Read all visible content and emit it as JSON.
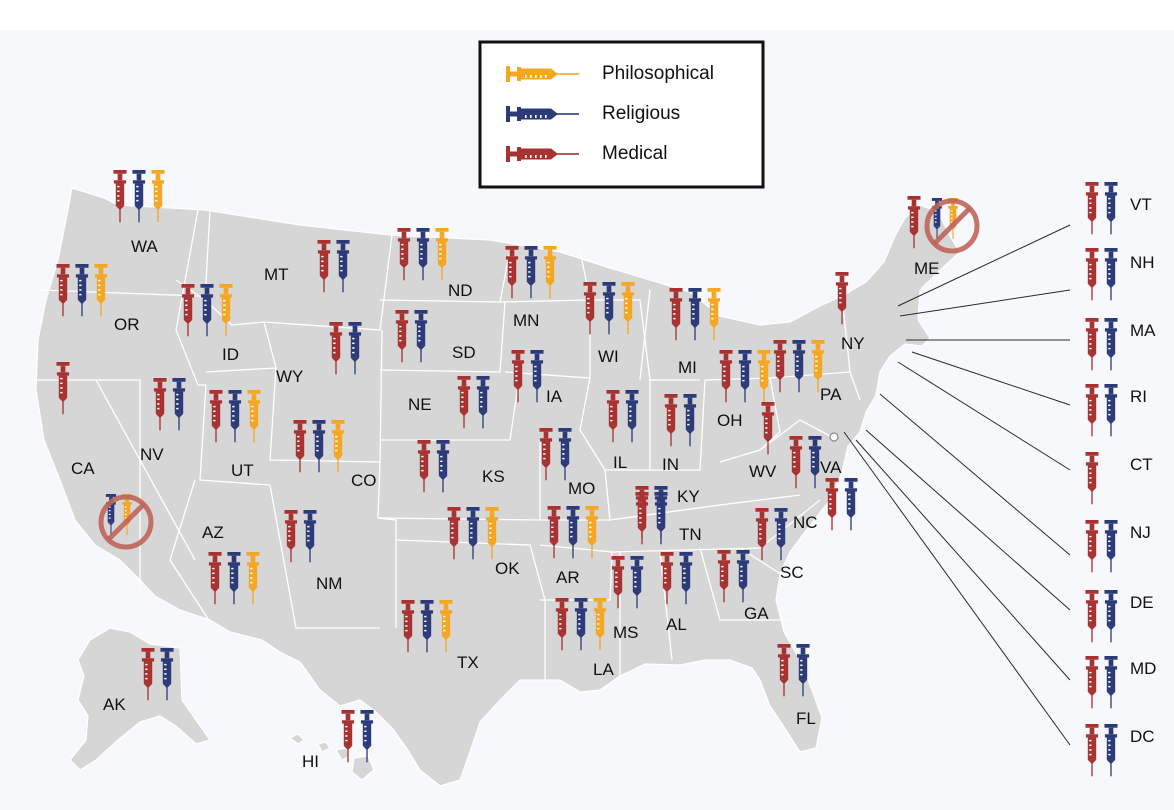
{
  "colors": {
    "philosophical": "#f5a623",
    "religious": "#2c3a78",
    "medical": "#a83232",
    "land": "#d6d6d6",
    "border": "#ffffff",
    "ban": "#c0645a",
    "background_band": "#f7f8fb"
  },
  "legend": {
    "philosophical": "Philosophical",
    "religious": "Religious",
    "medical": "Medical"
  },
  "states": [
    {
      "code": "WA",
      "label": "WA",
      "exemptions": [
        "medical",
        "religious",
        "philosophical"
      ],
      "banned": false
    },
    {
      "code": "OR",
      "label": "OR",
      "exemptions": [
        "medical",
        "religious",
        "philosophical"
      ],
      "banned": false
    },
    {
      "code": "CA",
      "label": "CA",
      "exemptions": [
        "medical"
      ],
      "banned": false,
      "banned_icon": [
        "religious",
        "philosophical"
      ]
    },
    {
      "code": "NV",
      "label": "NV",
      "exemptions": [
        "medical",
        "religious"
      ],
      "banned": false
    },
    {
      "code": "ID",
      "label": "ID",
      "exemptions": [
        "medical",
        "religious",
        "philosophical"
      ],
      "banned": false
    },
    {
      "code": "MT",
      "label": "MT",
      "exemptions": [
        "medical",
        "religious"
      ],
      "banned": false
    },
    {
      "code": "WY",
      "label": "WY",
      "exemptions": [
        "medical",
        "religious"
      ],
      "banned": false
    },
    {
      "code": "UT",
      "label": "UT",
      "exemptions": [
        "medical",
        "religious",
        "philosophical"
      ],
      "banned": false
    },
    {
      "code": "AZ",
      "label": "AZ",
      "exemptions": [
        "medical",
        "religious",
        "philosophical"
      ],
      "banned": false
    },
    {
      "code": "CO",
      "label": "CO",
      "exemptions": [
        "medical",
        "religious",
        "philosophical"
      ],
      "banned": false
    },
    {
      "code": "NM",
      "label": "NM",
      "exemptions": [
        "medical",
        "religious"
      ],
      "banned": false
    },
    {
      "code": "ND",
      "label": "ND",
      "exemptions": [
        "medical",
        "religious",
        "philosophical"
      ],
      "banned": false
    },
    {
      "code": "SD",
      "label": "SD",
      "exemptions": [
        "medical",
        "religious"
      ],
      "banned": false
    },
    {
      "code": "NE",
      "label": "NE",
      "exemptions": [
        "medical",
        "religious"
      ],
      "banned": false
    },
    {
      "code": "KS",
      "label": "KS",
      "exemptions": [
        "medical",
        "religious"
      ],
      "banned": false
    },
    {
      "code": "OK",
      "label": "OK",
      "exemptions": [
        "medical",
        "religious",
        "philosophical"
      ],
      "banned": false
    },
    {
      "code": "TX",
      "label": "TX",
      "exemptions": [
        "medical",
        "religious",
        "philosophical"
      ],
      "banned": false
    },
    {
      "code": "MN",
      "label": "MN",
      "exemptions": [
        "medical",
        "religious",
        "philosophical"
      ],
      "banned": false
    },
    {
      "code": "IA",
      "label": "IA",
      "exemptions": [
        "medical",
        "religious"
      ],
      "banned": false
    },
    {
      "code": "MO",
      "label": "MO",
      "exemptions": [
        "medical",
        "religious"
      ],
      "banned": false
    },
    {
      "code": "AR",
      "label": "AR",
      "exemptions": [
        "medical",
        "religious",
        "philosophical"
      ],
      "banned": false
    },
    {
      "code": "LA",
      "label": "LA",
      "exemptions": [
        "medical",
        "religious",
        "philosophical"
      ],
      "banned": false
    },
    {
      "code": "WI",
      "label": "WI",
      "exemptions": [
        "medical",
        "religious",
        "philosophical"
      ],
      "banned": false
    },
    {
      "code": "IL",
      "label": "IL",
      "exemptions": [
        "medical",
        "religious"
      ],
      "banned": false
    },
    {
      "code": "MI",
      "label": "MI",
      "exemptions": [
        "medical",
        "religious",
        "philosophical"
      ],
      "banned": false
    },
    {
      "code": "IN",
      "label": "IN",
      "exemptions": [
        "medical",
        "religious"
      ],
      "banned": false
    },
    {
      "code": "OH",
      "label": "OH",
      "exemptions": [
        "medical",
        "religious",
        "philosophical"
      ],
      "banned": false
    },
    {
      "code": "KY",
      "label": "KY",
      "exemptions": [
        "medical",
        "religious"
      ],
      "banned": false
    },
    {
      "code": "TN",
      "label": "TN",
      "exemptions": [
        "medical",
        "religious"
      ],
      "banned": false
    },
    {
      "code": "MS",
      "label": "MS",
      "exemptions": [
        "medical",
        "religious"
      ],
      "banned": false
    },
    {
      "code": "AL",
      "label": "AL",
      "exemptions": [
        "medical",
        "religious"
      ],
      "banned": false
    },
    {
      "code": "GA",
      "label": "GA",
      "exemptions": [
        "medical",
        "religious"
      ],
      "banned": false
    },
    {
      "code": "FL",
      "label": "FL",
      "exemptions": [
        "medical",
        "religious"
      ],
      "banned": false
    },
    {
      "code": "SC",
      "label": "SC",
      "exemptions": [
        "medical",
        "religious"
      ],
      "banned": false
    },
    {
      "code": "NC",
      "label": "NC",
      "exemptions": [
        "medical",
        "religious"
      ],
      "banned": false
    },
    {
      "code": "VA",
      "label": "VA",
      "exemptions": [
        "medical",
        "religious"
      ],
      "banned": false
    },
    {
      "code": "WV",
      "label": "WV",
      "exemptions": [
        "medical"
      ],
      "banned": false
    },
    {
      "code": "PA",
      "label": "PA",
      "exemptions": [
        "medical",
        "religious",
        "philosophical"
      ],
      "banned": false
    },
    {
      "code": "NY",
      "label": "NY",
      "exemptions": [
        "medical"
      ],
      "banned": false
    },
    {
      "code": "ME",
      "label": "ME",
      "exemptions": [
        "medical"
      ],
      "banned": false,
      "banned_icon": [
        "religious",
        "philosophical"
      ]
    },
    {
      "code": "AK",
      "label": "AK",
      "exemptions": [
        "medical",
        "religious"
      ],
      "banned": false
    },
    {
      "code": "HI",
      "label": "HI",
      "exemptions": [
        "medical",
        "religious"
      ],
      "banned": false
    },
    {
      "code": "VT",
      "label": "VT",
      "exemptions": [
        "medical",
        "religious"
      ],
      "banned": false
    },
    {
      "code": "NH",
      "label": "NH",
      "exemptions": [
        "medical",
        "religious"
      ],
      "banned": false
    },
    {
      "code": "MA",
      "label": "MA",
      "exemptions": [
        "medical",
        "religious"
      ],
      "banned": false
    },
    {
      "code": "RI",
      "label": "RI",
      "exemptions": [
        "medical",
        "religious"
      ],
      "banned": false
    },
    {
      "code": "CT",
      "label": "CT",
      "exemptions": [
        "medical"
      ],
      "banned": false
    },
    {
      "code": "NJ",
      "label": "NJ",
      "exemptions": [
        "medical",
        "religious"
      ],
      "banned": false
    },
    {
      "code": "DE",
      "label": "DE",
      "exemptions": [
        "medical",
        "religious"
      ],
      "banned": false
    },
    {
      "code": "MD",
      "label": "MD",
      "exemptions": [
        "medical",
        "religious"
      ],
      "banned": false
    },
    {
      "code": "DC",
      "label": "DC",
      "exemptions": [
        "medical",
        "religious"
      ],
      "banned": false
    }
  ]
}
